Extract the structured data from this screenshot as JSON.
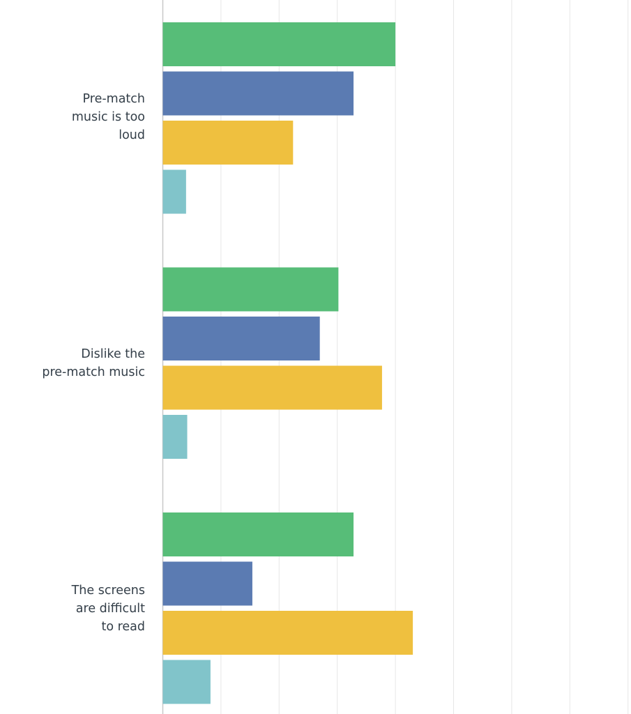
{
  "chart_data": {
    "type": "bar",
    "orientation": "horizontal",
    "categories": [
      "Pre-match\nmusic is too\nloud",
      "Dislike the\npre-match music",
      "The screens\nare difficult\nto read"
    ],
    "series": [
      {
        "color": "#57bd78",
        "values": [
          4.0,
          3.02,
          3.28
        ]
      },
      {
        "color": "#5b7bb2",
        "values": [
          3.28,
          2.7,
          1.54
        ]
      },
      {
        "color": "#efc03f",
        "values": [
          2.24,
          3.77,
          4.3
        ]
      },
      {
        "color": "#81c4ca",
        "values": [
          0.4,
          0.42,
          0.82
        ]
      }
    ],
    "xlim": [
      0,
      8
    ],
    "x_gridlines": [
      1,
      2,
      3,
      4,
      5,
      6,
      7,
      8
    ],
    "grid": true,
    "legend": "none"
  }
}
